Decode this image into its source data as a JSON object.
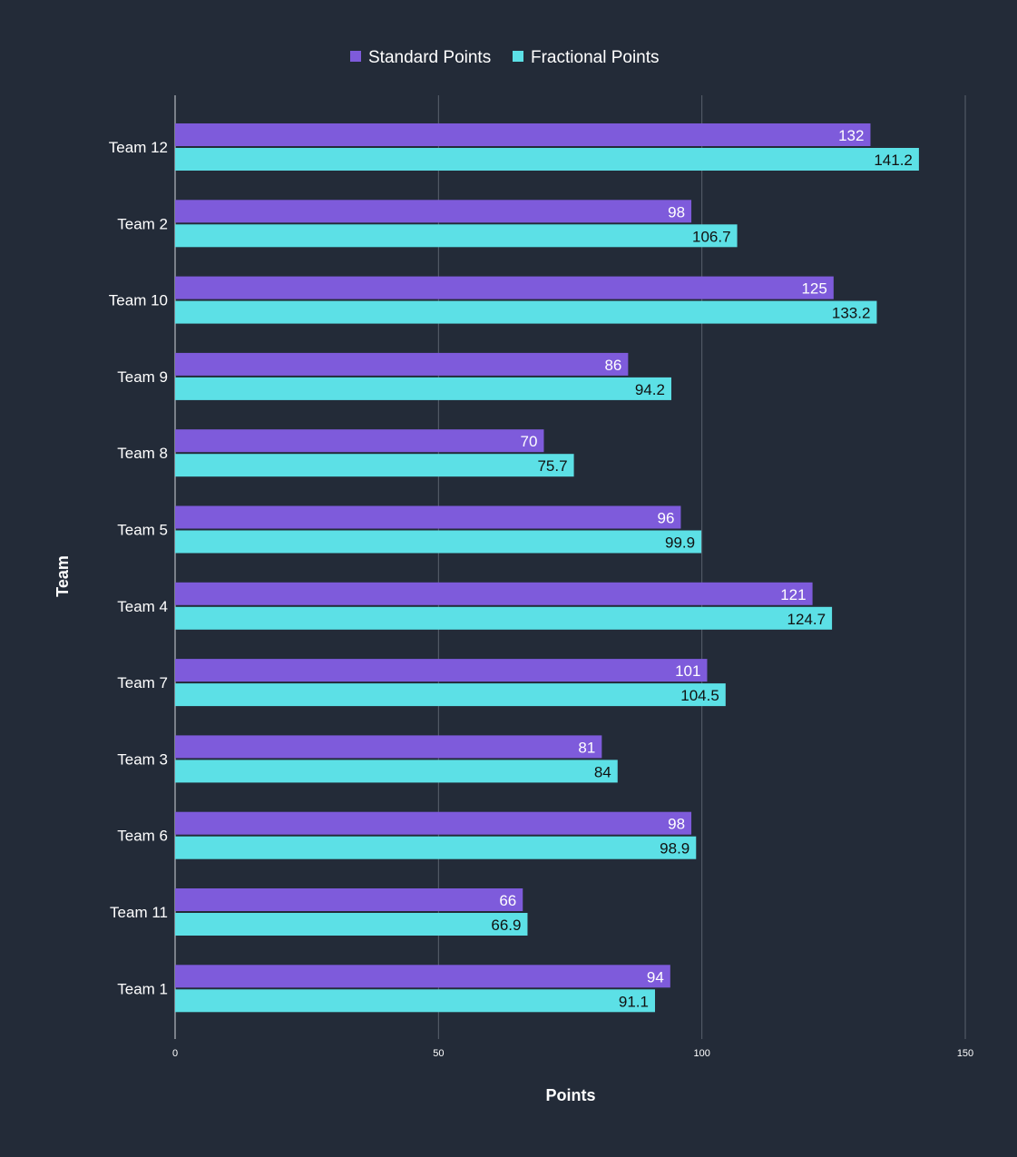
{
  "chart_data": {
    "type": "bar",
    "orientation": "horizontal",
    "title": "",
    "xlabel": "Points",
    "ylabel": "Team",
    "xlim": [
      0,
      150
    ],
    "xticks": [
      "0",
      "50",
      "100",
      "150"
    ],
    "grid": "vertical",
    "legend": "top-center",
    "categories": [
      "Team 12",
      "Team 2",
      "Team 10",
      "Team 9",
      "Team 8",
      "Team 5",
      "Team 4",
      "Team 7",
      "Team 3",
      "Team 6",
      "Team 11",
      "Team 1"
    ],
    "series": [
      {
        "name": "Standard Points",
        "color": "#7e5bdb",
        "values": [
          132,
          98,
          125,
          86,
          70,
          96,
          121,
          101,
          81,
          98,
          66,
          94
        ]
      },
      {
        "name": "Fractional Points",
        "color": "#5ce0e6",
        "values": [
          141.2,
          106.7,
          133.2,
          94.2,
          75.7,
          99.9,
          124.7,
          104.5,
          84,
          98.9,
          66.9,
          91.1
        ]
      }
    ]
  }
}
